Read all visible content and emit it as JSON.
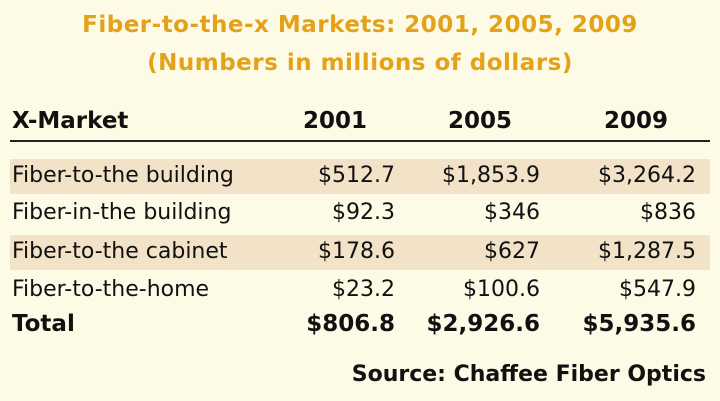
{
  "title": "Fiber-to-the-x Markets: 2001, 2005, 2009",
  "subtitle": "(Numbers in millions of dollars)",
  "source": "Source: Chaffee Fiber Optics",
  "colors": {
    "title": "#e3a21a",
    "background": "#fdfbe6",
    "row_band": "#f1e2c8"
  },
  "chart_data": {
    "type": "table",
    "title": "Fiber-to-the-x Markets: 2001, 2005, 2009",
    "subtitle": "(Numbers in millions of dollars)",
    "columns": [
      "X-Market",
      "2001",
      "2005",
      "2009"
    ],
    "rows": [
      {
        "label": "Fiber-to-the building",
        "values": [
          "$512.7",
          "$1,853.9",
          "$3,264.2"
        ]
      },
      {
        "label": "Fiber-in-the building",
        "values": [
          "$92.3",
          "$346",
          "$836"
        ]
      },
      {
        "label": "Fiber-to-the cabinet",
        "values": [
          "$178.6",
          "$627",
          "$1,287.5"
        ]
      },
      {
        "label": "Fiber-to-the-home",
        "values": [
          "$23.2",
          "$100.6",
          "$547.9"
        ]
      }
    ],
    "total": {
      "label": "Total",
      "values": [
        "$806.8",
        "$2,926.6",
        "$5,935.6"
      ]
    }
  }
}
